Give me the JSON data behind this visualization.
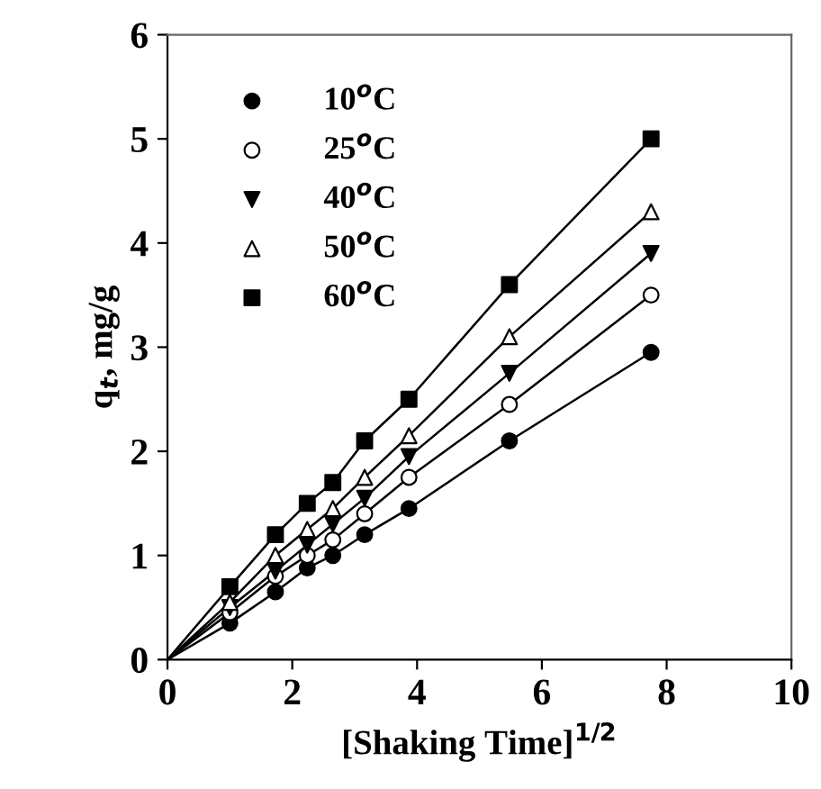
{
  "chart_data": {
    "type": "scatter",
    "xlabel": "[Shaking Time]$^{1/2}$",
    "ylabel": "q$_{t}$, mg/g",
    "x": [
      1,
      1.73,
      2.24,
      2.65,
      3.16,
      3.87,
      5.48,
      7.75
    ],
    "series": [
      {
        "name": "10$^{o}$C",
        "color": "#000000",
        "marker": "circle",
        "values": [
          0.35,
          0.65,
          0.88,
          1.0,
          1.2,
          1.45,
          2.1,
          2.95
        ]
      },
      {
        "name": "25$^{o}$C",
        "color": "#ffffff",
        "marker": "circle",
        "values": [
          0.45,
          0.8,
          1.0,
          1.15,
          1.4,
          1.75,
          2.45,
          3.5
        ]
      },
      {
        "name": "40$^{o}$C",
        "color": "#000000",
        "marker": "triangle_down",
        "values": [
          0.5,
          0.85,
          1.1,
          1.3,
          1.55,
          1.95,
          2.75,
          3.9
        ]
      },
      {
        "name": "50$^{o}$C",
        "color": "#ffffff",
        "marker": "triangle",
        "values": [
          0.55,
          1.0,
          1.25,
          1.45,
          1.75,
          2.15,
          3.1,
          4.3
        ]
      },
      {
        "name": "60$^{o}$C",
        "color": "#000000",
        "marker": "square",
        "values": [
          0.7,
          1.2,
          1.5,
          1.7,
          2.1,
          2.5,
          3.6,
          5.0
        ]
      },
      {
        "type": "line",
        "color": "#000000",
        "x": [
          0,
          1,
          1.73,
          2.24,
          2.65,
          3.16,
          3.87,
          5.48,
          7.75
        ],
        "values": [
          0,
          0.35,
          0.65,
          0.88,
          1.0,
          1.2,
          1.45,
          2.1,
          2.95
        ]
      },
      {
        "type": "line",
        "color": "#000000",
        "x": [
          0,
          1,
          1.73,
          2.24,
          2.65,
          3.16,
          3.87,
          5.48,
          7.75
        ],
        "values": [
          0,
          0.45,
          0.8,
          1.0,
          1.15,
          1.4,
          1.75,
          2.45,
          3.5
        ]
      },
      {
        "type": "line",
        "color": "#000000",
        "x": [
          0,
          1,
          1.73,
          2.24,
          2.65,
          3.16,
          3.87,
          5.48,
          7.75
        ],
        "values": [
          0,
          0.5,
          0.85,
          1.1,
          1.3,
          1.55,
          1.95,
          2.75,
          3.9
        ]
      },
      {
        "type": "line",
        "color": "#000000",
        "x": [
          0,
          1,
          1.73,
          2.24,
          2.65,
          3.16,
          3.87,
          5.48,
          7.75
        ],
        "values": [
          0,
          0.55,
          1.0,
          1.25,
          1.45,
          1.75,
          2.15,
          3.1,
          4.3
        ]
      },
      {
        "type": "line",
        "color": "#000000",
        "x": [
          0,
          1,
          1.73,
          2.24,
          2.65,
          3.16,
          3.87,
          5.48,
          7.75
        ],
        "values": [
          0,
          0.7,
          1.2,
          1.5,
          1.7,
          2.1,
          2.5,
          3.6,
          5.0
        ]
      }
    ],
    "xlim": [
      0,
      10
    ],
    "xticks": [
      0,
      2,
      4,
      6,
      8,
      10
    ],
    "ylim": [
      0,
      6
    ],
    "yticks": [
      0,
      1,
      2,
      3,
      4,
      5,
      6
    ],
    "grid": false,
    "legend": "top left"
  }
}
